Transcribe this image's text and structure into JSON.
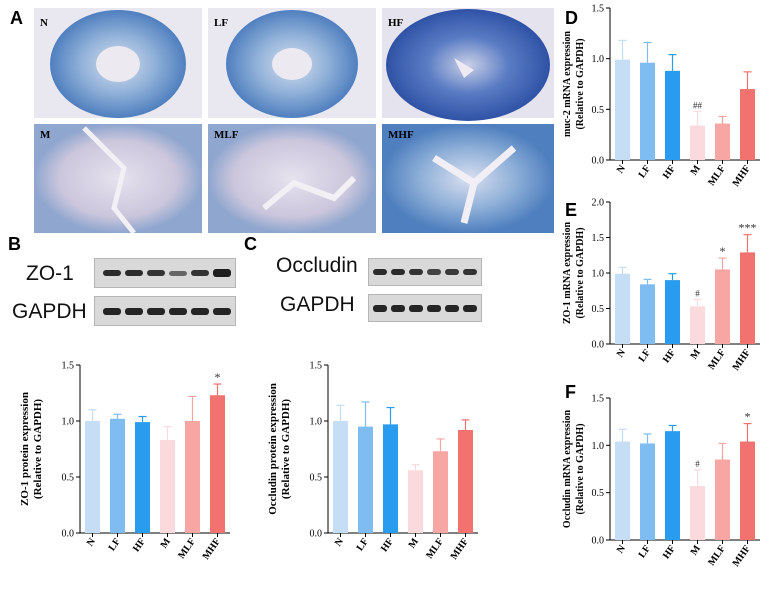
{
  "panels": {
    "A": "A",
    "B": "B",
    "C": "C",
    "D": "D",
    "E": "E",
    "F": "F"
  },
  "micrographs": {
    "labels": [
      "N",
      "LF",
      "HF",
      "M",
      "MLF",
      "MHF"
    ]
  },
  "blot_B": {
    "protein": "ZO-1",
    "control": "GAPDH"
  },
  "blot_C": {
    "protein": "Occludin",
    "control": "GAPDH"
  },
  "colors": [
    "#c5ddf5",
    "#7fbcf2",
    "#2a9cf0",
    "#fadadd",
    "#f7a6a4",
    "#f2726f"
  ],
  "chart_data": [
    {
      "id": "B",
      "type": "bar",
      "categories": [
        "N",
        "LF",
        "HF",
        "M",
        "MLF",
        "MHF"
      ],
      "values": [
        1.0,
        1.02,
        0.99,
        0.83,
        1.0,
        1.23
      ],
      "errors": [
        0.1,
        0.04,
        0.05,
        0.12,
        0.22,
        0.1
      ],
      "annotations": [
        "",
        "",
        "",
        "",
        "",
        "*"
      ],
      "ylabel": "ZO-1 protein expression",
      "ylabel2": "(Relative to GAPDH)",
      "ylim": [
        0,
        1.5
      ],
      "yticks": [
        "0.0",
        "0.5",
        "1.0",
        "1.5"
      ]
    },
    {
      "id": "C",
      "type": "bar",
      "categories": [
        "N",
        "LF",
        "HF",
        "M",
        "MLF",
        "MHF"
      ],
      "values": [
        1.0,
        0.95,
        0.97,
        0.56,
        0.73,
        0.92
      ],
      "errors": [
        0.14,
        0.22,
        0.15,
        0.05,
        0.11,
        0.09
      ],
      "annotations": [
        "",
        "",
        "",
        "",
        "",
        ""
      ],
      "ylabel": "Occludin protein expression",
      "ylabel2": "(Relative to GAPDH)",
      "ylim": [
        0,
        1.5
      ],
      "yticks": [
        "0.0",
        "0.5",
        "1.0",
        "1.5"
      ]
    },
    {
      "id": "D",
      "type": "bar",
      "categories": [
        "N",
        "LF",
        "HF",
        "M",
        "MLF",
        "MHF"
      ],
      "values": [
        0.99,
        0.96,
        0.88,
        0.34,
        0.36,
        0.7
      ],
      "errors": [
        0.19,
        0.2,
        0.16,
        0.14,
        0.07,
        0.17
      ],
      "annotations": [
        "",
        "",
        "",
        "##",
        "",
        ""
      ],
      "ylabel": "muc-2 mRNA expression",
      "ylabel2": "(Relative to GAPDH)",
      "ylim": [
        0,
        1.5
      ],
      "yticks": [
        "0.0",
        "0.5",
        "1.0",
        "1.5"
      ]
    },
    {
      "id": "E",
      "type": "bar",
      "categories": [
        "N",
        "LF",
        "HF",
        "M",
        "MLF",
        "MHF"
      ],
      "values": [
        0.99,
        0.84,
        0.9,
        0.53,
        1.05,
        1.29
      ],
      "errors": [
        0.09,
        0.07,
        0.09,
        0.1,
        0.16,
        0.25
      ],
      "annotations": [
        "",
        "",
        "",
        "#",
        "*",
        "***"
      ],
      "ylabel": "ZO-1 mRNA expression",
      "ylabel2": "(Relative to GAPDH)",
      "ylim": [
        0,
        2.0
      ],
      "yticks": [
        "0.0",
        "0.5",
        "1.0",
        "1.5",
        "2.0"
      ]
    },
    {
      "id": "F",
      "type": "bar",
      "categories": [
        "N",
        "LF",
        "HF",
        "M",
        "MLF",
        "MHF"
      ],
      "values": [
        1.04,
        1.02,
        1.15,
        0.57,
        0.85,
        1.04
      ],
      "errors": [
        0.13,
        0.1,
        0.06,
        0.17,
        0.17,
        0.19
      ],
      "annotations": [
        "",
        "",
        "",
        "#",
        "",
        "*"
      ],
      "ylabel": "Occludin mRNA expression",
      "ylabel2": "(Relative to GAPDH)",
      "ylim": [
        0,
        1.5
      ],
      "yticks": [
        "0.0",
        "0.5",
        "1.0",
        "1.5"
      ]
    }
  ]
}
